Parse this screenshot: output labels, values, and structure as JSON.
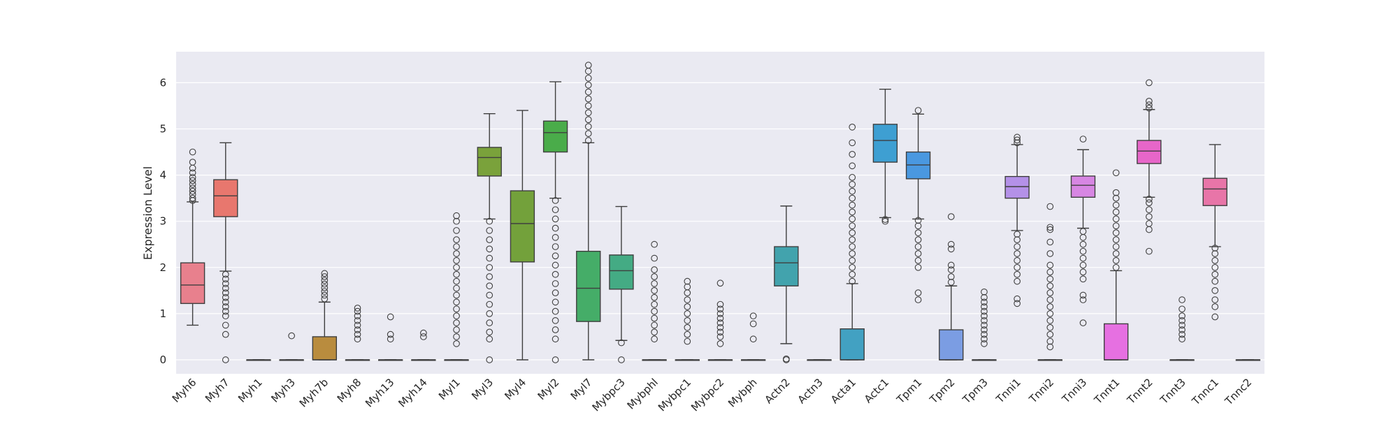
{
  "chart_data": {
    "type": "box",
    "title": "",
    "xlabel": "",
    "ylabel": "Expression Level",
    "ylim": [
      -0.3,
      6.6
    ],
    "yticks": [
      0,
      1,
      2,
      3,
      4,
      5,
      6
    ],
    "grid": true,
    "legend": "none",
    "categories": [
      "Myh6",
      "Myh7",
      "Myh1",
      "Myh3",
      "Myh7b",
      "Myh8",
      "Myh13",
      "Myh14",
      "Myl1",
      "Myl3",
      "Myl4",
      "Myl2",
      "Myl7",
      "Mybpc3",
      "Mybphl",
      "Mybpc1",
      "Mybpc2",
      "Mybph",
      "Actn2",
      "Actn3",
      "Acta1",
      "Actc1",
      "Tpm1",
      "Tpm2",
      "Tpm3",
      "Tnni1",
      "Tnni2",
      "Tnni3",
      "Tnnt1",
      "Tnnt2",
      "Tnnt3",
      "Tnnc1",
      "Tnnc2"
    ],
    "colors": [
      "#e8808d",
      "#e8776e",
      "#d98b52",
      "#cc923e",
      "#b98c3e",
      "#a7973c",
      "#949d3b",
      "#86a13b",
      "#7aa23b",
      "#7aa23b",
      "#73a13b",
      "#4aac4a",
      "#45ad68",
      "#44ab84",
      "#44a995",
      "#43a7a0",
      "#43a6a8",
      "#42a4b0",
      "#42a3ad",
      "#42a3b9",
      "#42a1c2",
      "#3e9fd2",
      "#4a98e0",
      "#7b9de3",
      "#9e98e6",
      "#b491e8",
      "#c78ae6",
      "#d786e3",
      "#e670e1",
      "#e766c9",
      "#e86ab7",
      "#e875a8",
      "#e87c9a"
    ],
    "boxes": [
      {
        "q1": 1.22,
        "median": 1.62,
        "q3": 2.1,
        "whislo": 0.75,
        "whishi": 3.42,
        "fliers": [
          3.45,
          3.5,
          3.58,
          3.65,
          3.72,
          3.8,
          3.88,
          3.95,
          4.05,
          4.15,
          4.28,
          4.5
        ]
      },
      {
        "q1": 3.1,
        "median": 3.55,
        "q3": 3.9,
        "whislo": 1.92,
        "whishi": 4.7,
        "fliers": [
          0,
          0.55,
          0.75,
          0.95,
          1.05,
          1.15,
          1.25,
          1.35,
          1.45,
          1.55,
          1.65,
          1.75,
          1.85
        ]
      },
      {
        "q1": 0,
        "median": 0,
        "q3": 0,
        "whislo": 0,
        "whishi": 0,
        "fliers": []
      },
      {
        "q1": 0,
        "median": 0,
        "q3": 0,
        "whislo": 0,
        "whishi": 0,
        "fliers": [
          0.52
        ]
      },
      {
        "q1": 0,
        "median": 0,
        "q3": 0.5,
        "whislo": 0,
        "whishi": 1.25,
        "fliers": [
          1.32,
          1.4,
          1.48,
          1.56,
          1.64,
          1.72,
          1.8,
          1.87
        ]
      },
      {
        "q1": 0,
        "median": 0,
        "q3": 0,
        "whislo": 0,
        "whishi": 0,
        "fliers": [
          0.45,
          0.55,
          0.65,
          0.75,
          0.85,
          0.95,
          1.05,
          1.12
        ]
      },
      {
        "q1": 0,
        "median": 0,
        "q3": 0,
        "whislo": 0,
        "whishi": 0,
        "fliers": [
          0.45,
          0.55,
          0.93
        ]
      },
      {
        "q1": 0,
        "median": 0,
        "q3": 0,
        "whislo": 0,
        "whishi": 0,
        "fliers": [
          0.5,
          0.58
        ]
      },
      {
        "q1": 0,
        "median": 0,
        "q3": 0,
        "whislo": 0,
        "whishi": 0,
        "fliers": [
          0.35,
          0.5,
          0.65,
          0.8,
          0.95,
          1.1,
          1.25,
          1.4,
          1.55,
          1.7,
          1.85,
          2.0,
          2.15,
          2.3,
          2.45,
          2.6,
          2.8,
          3.0,
          3.12
        ]
      },
      {
        "q1": 3.98,
        "median": 4.38,
        "q3": 4.6,
        "whislo": 3.05,
        "whishi": 5.33,
        "fliers": [
          0,
          0.45,
          0.6,
          0.8,
          1.0,
          1.2,
          1.4,
          1.6,
          1.8,
          2.0,
          2.2,
          2.4,
          2.6,
          2.8,
          3.0
        ]
      },
      {
        "q1": 2.12,
        "median": 2.95,
        "q3": 3.66,
        "whislo": 0,
        "whishi": 5.4,
        "fliers": []
      },
      {
        "q1": 4.5,
        "median": 4.92,
        "q3": 5.17,
        "whislo": 3.5,
        "whishi": 6.02,
        "fliers": [
          0,
          0.45,
          0.65,
          0.85,
          1.05,
          1.25,
          1.45,
          1.65,
          1.85,
          2.05,
          2.25,
          2.45,
          2.65,
          2.85,
          3.05,
          3.25,
          3.45
        ]
      },
      {
        "q1": 0.83,
        "median": 1.55,
        "q3": 2.35,
        "whislo": 0,
        "whishi": 4.7,
        "fliers": [
          4.75,
          4.9,
          5.05,
          5.2,
          5.35,
          5.5,
          5.65,
          5.8,
          5.95,
          6.1,
          6.25,
          6.38
        ]
      },
      {
        "q1": 1.53,
        "median": 1.93,
        "q3": 2.27,
        "whislo": 0.42,
        "whishi": 3.32,
        "fliers": [
          0,
          0.37
        ]
      },
      {
        "q1": 0,
        "median": 0,
        "q3": 0,
        "whislo": 0,
        "whishi": 0,
        "fliers": [
          0.45,
          0.6,
          0.75,
          0.9,
          1.05,
          1.2,
          1.35,
          1.5,
          1.65,
          1.8,
          1.95,
          2.2,
          2.5
        ]
      },
      {
        "q1": 0,
        "median": 0,
        "q3": 0,
        "whislo": 0,
        "whishi": 0,
        "fliers": [
          0.4,
          0.55,
          0.7,
          0.85,
          1.0,
          1.15,
          1.3,
          1.45,
          1.58,
          1.7
        ]
      },
      {
        "q1": 0,
        "median": 0,
        "q3": 0,
        "whislo": 0,
        "whishi": 0,
        "fliers": [
          0.35,
          0.5,
          0.6,
          0.7,
          0.8,
          0.9,
          1.0,
          1.1,
          1.2,
          1.66
        ]
      },
      {
        "q1": 0,
        "median": 0,
        "q3": 0,
        "whislo": 0,
        "whishi": 0,
        "fliers": [
          0.45,
          0.78,
          0.95
        ]
      },
      {
        "q1": 1.6,
        "median": 2.1,
        "q3": 2.45,
        "whislo": 0.35,
        "whishi": 3.33,
        "fliers": [
          0,
          0.02
        ]
      },
      {
        "q1": 0,
        "median": 0,
        "q3": 0,
        "whislo": 0,
        "whishi": 0,
        "fliers": []
      },
      {
        "q1": 0,
        "median": 0,
        "q3": 0.67,
        "whislo": 0,
        "whishi": 1.65,
        "fliers": [
          1.7,
          1.85,
          2.0,
          2.15,
          2.3,
          2.45,
          2.6,
          2.75,
          2.9,
          3.05,
          3.2,
          3.35,
          3.5,
          3.65,
          3.8,
          3.95,
          4.2,
          4.45,
          4.7,
          5.04
        ]
      },
      {
        "q1": 4.28,
        "median": 4.75,
        "q3": 5.1,
        "whislo": 3.08,
        "whishi": 5.86,
        "fliers": [
          3.0,
          3.04
        ]
      },
      {
        "q1": 3.92,
        "median": 4.22,
        "q3": 4.5,
        "whislo": 3.05,
        "whishi": 5.32,
        "fliers": [
          1.3,
          1.45,
          2.0,
          2.15,
          2.3,
          2.45,
          2.6,
          2.75,
          2.9,
          3.02,
          5.4
        ]
      },
      {
        "q1": 0,
        "median": 0,
        "q3": 0.65,
        "whislo": 0,
        "whishi": 1.6,
        "fliers": [
          1.68,
          1.8,
          1.95,
          2.05,
          2.4,
          2.5,
          3.1
        ]
      },
      {
        "q1": 0,
        "median": 0,
        "q3": 0,
        "whislo": 0,
        "whishi": 0,
        "fliers": [
          0.35,
          0.45,
          0.55,
          0.65,
          0.75,
          0.85,
          0.95,
          1.05,
          1.15,
          1.25,
          1.35,
          1.47
        ]
      },
      {
        "q1": 3.5,
        "median": 3.75,
        "q3": 3.97,
        "whislo": 2.8,
        "whishi": 4.66,
        "fliers": [
          1.22,
          1.32,
          1.7,
          1.85,
          2.0,
          2.15,
          2.3,
          2.45,
          2.6,
          2.72,
          4.7,
          4.76,
          4.82
        ]
      },
      {
        "q1": 0,
        "median": 0,
        "q3": 0,
        "whislo": 0,
        "whishi": 0,
        "fliers": [
          0.28,
          0.4,
          0.55,
          0.7,
          0.85,
          1.0,
          1.15,
          1.3,
          1.45,
          1.6,
          1.75,
          1.9,
          2.05,
          2.3,
          2.55,
          2.82,
          2.87,
          3.32
        ]
      },
      {
        "q1": 3.52,
        "median": 3.78,
        "q3": 3.98,
        "whislo": 2.85,
        "whishi": 4.55,
        "fliers": [
          0.8,
          1.3,
          1.4,
          1.75,
          1.9,
          2.05,
          2.2,
          2.35,
          2.5,
          2.65,
          2.78,
          4.78
        ]
      },
      {
        "q1": 0,
        "median": 0,
        "q3": 0.78,
        "whislo": 0,
        "whishi": 1.93,
        "fliers": [
          2.0,
          2.15,
          2.3,
          2.45,
          2.6,
          2.75,
          2.9,
          3.05,
          3.2,
          3.35,
          3.5,
          3.62,
          4.05
        ]
      },
      {
        "q1": 4.25,
        "median": 4.52,
        "q3": 4.75,
        "whislo": 3.52,
        "whishi": 5.42,
        "fliers": [
          2.35,
          2.82,
          2.95,
          3.1,
          3.25,
          3.4,
          3.48,
          5.45,
          5.52,
          5.6,
          6.0
        ]
      },
      {
        "q1": 0,
        "median": 0,
        "q3": 0,
        "whislo": 0,
        "whishi": 0,
        "fliers": [
          0.45,
          0.55,
          0.65,
          0.75,
          0.85,
          0.95,
          1.1,
          1.3
        ]
      },
      {
        "q1": 3.34,
        "median": 3.7,
        "q3": 3.93,
        "whislo": 2.45,
        "whishi": 4.66,
        "fliers": [
          0.93,
          1.15,
          1.3,
          1.5,
          1.7,
          1.85,
          2.0,
          2.15,
          2.3,
          2.42
        ]
      },
      {
        "q1": 0,
        "median": 0,
        "q3": 0,
        "whislo": 0,
        "whishi": 0,
        "fliers": []
      }
    ]
  }
}
